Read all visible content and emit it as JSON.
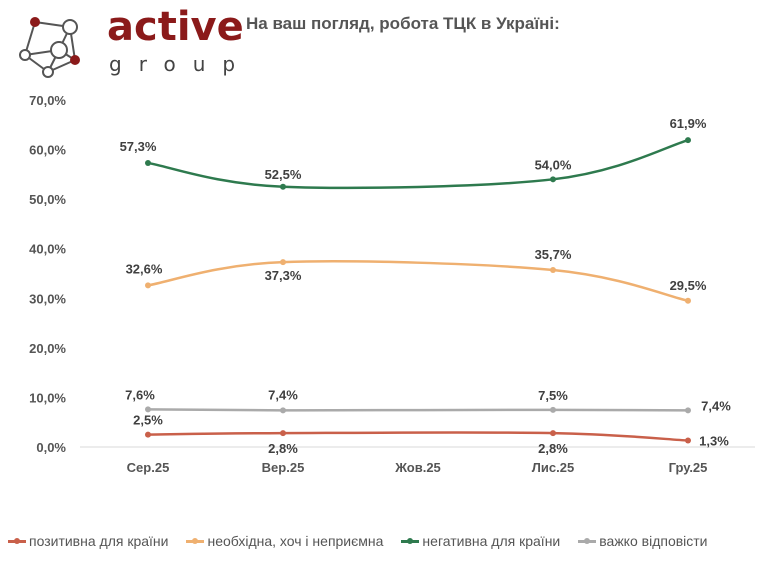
{
  "logo": {
    "word1": "active",
    "word2": "group",
    "color": "#8b1a1a"
  },
  "chart_data": {
    "type": "line",
    "title": "На ваш погляд, робота ТЦК в Україні:",
    "categories": [
      "Сер.25",
      "Вер.25",
      "Жов.25",
      "Лис.25",
      "Гру.25"
    ],
    "ylim": [
      0,
      70
    ],
    "yticks": [
      "0,0%",
      "10,0%",
      "20,0%",
      "30,0%",
      "40,0%",
      "50,0%",
      "60,0%",
      "70,0%"
    ],
    "grid": false,
    "legend_position": "bottom",
    "series": [
      {
        "name": "позитивна для країни",
        "color": "#c9604a",
        "values": [
          2.5,
          2.8,
          null,
          2.8,
          1.3
        ],
        "labels": [
          "2,5%",
          "2,8%",
          "",
          "2,8%",
          "1,3%"
        ]
      },
      {
        "name": "необхідна, хоч і неприємна",
        "color": "#efb070",
        "values": [
          32.6,
          37.3,
          null,
          35.7,
          29.5
        ],
        "labels": [
          "32,6%",
          "37,3%",
          "",
          "35,7%",
          "29,5%"
        ]
      },
      {
        "name": "негативна для країни",
        "color": "#2e7a4e",
        "values": [
          57.3,
          52.5,
          null,
          54.0,
          61.9
        ],
        "labels": [
          "57,3%",
          "52,5%",
          "",
          "54,0%",
          "61,9%"
        ]
      },
      {
        "name": "важко відповісти",
        "color": "#aaaaaa",
        "values": [
          7.6,
          7.4,
          null,
          7.5,
          7.4
        ],
        "labels": [
          "7,6%",
          "7,4%",
          "",
          "7,5%",
          "7,4%"
        ]
      }
    ]
  }
}
